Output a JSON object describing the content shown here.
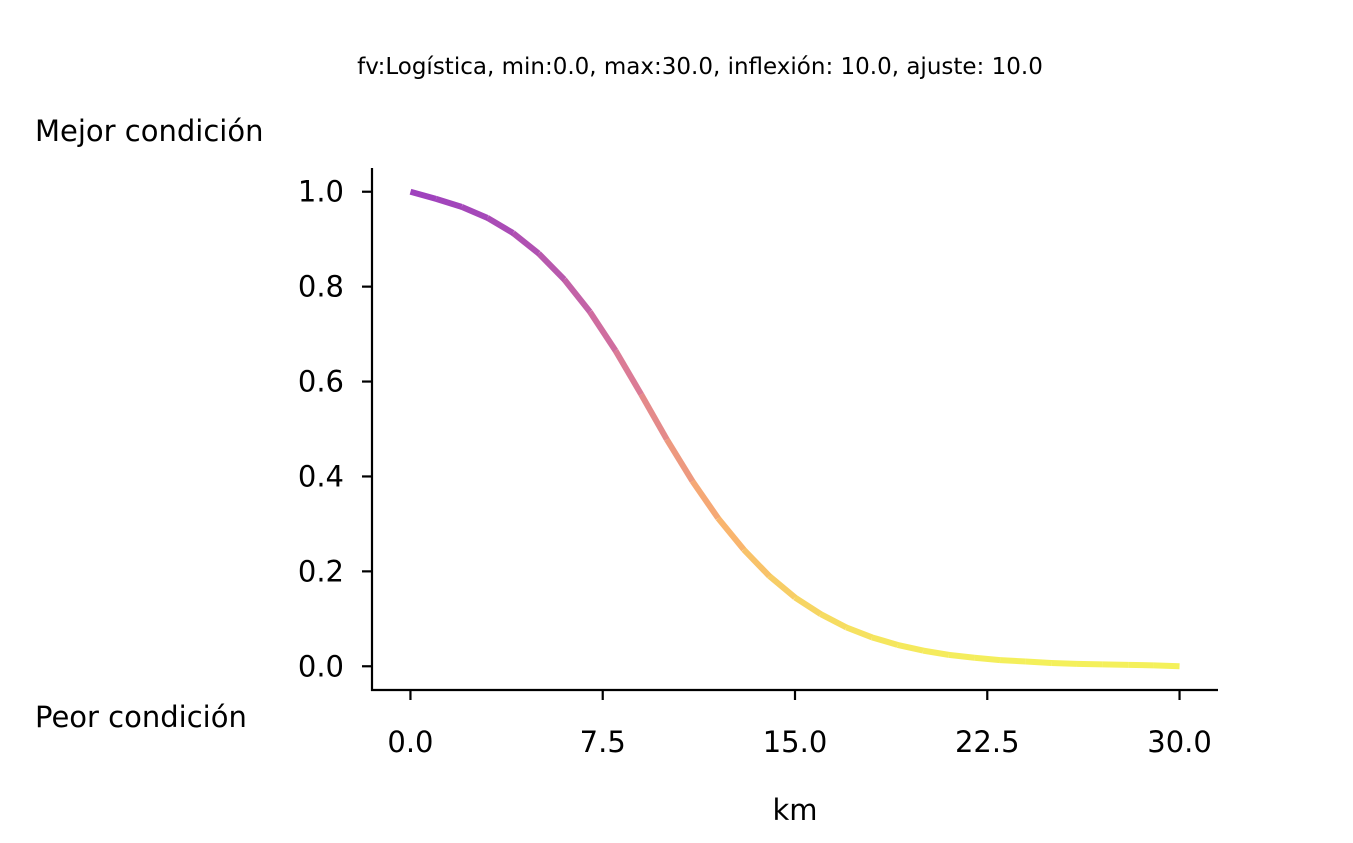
{
  "chart_data": {
    "type": "line",
    "title": "fv:Logística, min:0.0, max:30.0, inflexión: 10.0, ajuste: 10.0",
    "xlabel": "km",
    "ylabel": "",
    "top_label": "Mejor condición",
    "bottom_label": "Peor condición",
    "xlim": [
      -1.5,
      31.5
    ],
    "ylim": [
      -0.05,
      1.05
    ],
    "xticks": [
      0.0,
      7.5,
      15.0,
      22.5,
      30.0
    ],
    "xtick_labels": [
      "0.0",
      "7.5",
      "15.0",
      "22.5",
      "30.0"
    ],
    "yticks": [
      0.0,
      0.2,
      0.4,
      0.6,
      0.8,
      1.0
    ],
    "ytick_labels": [
      "0.0",
      "0.2",
      "0.4",
      "0.6",
      "0.8",
      "1.0"
    ],
    "grid": false,
    "colormap": "plasma",
    "series": [
      {
        "x": [
          0.0,
          1.0,
          2.0,
          3.0,
          4.0,
          5.0,
          6.0,
          7.0,
          8.0,
          9.0,
          10.0,
          11.0,
          12.0,
          13.0,
          14.0,
          15.0,
          16.0,
          17.0,
          18.0,
          19.0,
          20.0,
          21.0,
          22.0,
          23.0,
          24.0,
          25.0,
          26.0,
          27.0,
          28.0,
          29.0,
          30.0
        ],
        "y": [
          1.0,
          0.985,
          0.968,
          0.945,
          0.913,
          0.87,
          0.815,
          0.747,
          0.665,
          0.573,
          0.478,
          0.39,
          0.312,
          0.246,
          0.19,
          0.145,
          0.11,
          0.082,
          0.061,
          0.045,
          0.033,
          0.024,
          0.018,
          0.013,
          0.01,
          0.007,
          0.005,
          0.004,
          0.003,
          0.002,
          0.0
        ]
      }
    ]
  }
}
